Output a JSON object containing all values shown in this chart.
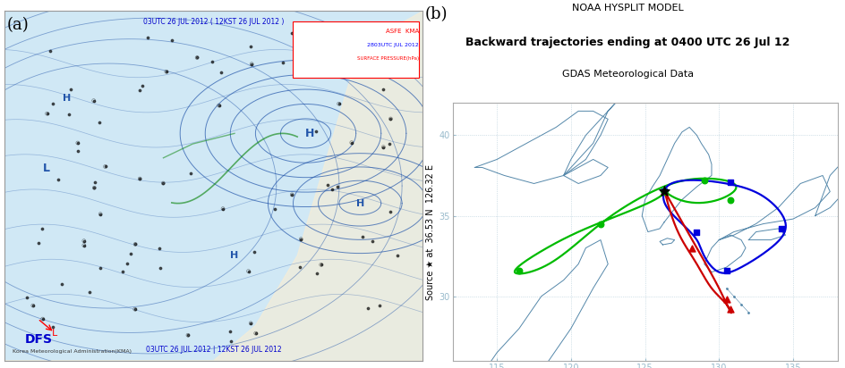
{
  "title_line1": "NOAA HYSPLIT MODEL",
  "title_line2": "Backward trajectories ending at 0400 UTC 26 Jul 12",
  "title_line3": "GDAS Meteorological Data",
  "source_label": "Source ★ at  36.53 N  126.32 E",
  "label_a": "(a)",
  "label_b": "(b)",
  "bg_color": "#ffffff",
  "map_bg": "#ffffff",
  "coast_color": "#5588aa",
  "grid_color": "#99bbcc",
  "border_color": "#999999",
  "lon_min": 112,
  "lon_max": 138,
  "lat_min": 26,
  "lat_max": 42,
  "lon_ticks": [
    115,
    120,
    125,
    130,
    135
  ],
  "lat_ticks": [
    30,
    35,
    40
  ],
  "lat_ticks_labels": [
    "30",
    "35",
    "40"
  ],
  "source_lon": 126.32,
  "source_lat": 36.53,
  "green_traj_lon": [
    126.32,
    124.5,
    121.0,
    118.0,
    116.2,
    118.5,
    122.0,
    125.5,
    128.5,
    131.0,
    130.5,
    128.5,
    126.32
  ],
  "green_traj_lat": [
    36.53,
    35.5,
    34.2,
    32.8,
    31.5,
    32.0,
    34.5,
    36.5,
    37.3,
    37.0,
    36.2,
    35.8,
    36.53
  ],
  "green_markers_lon": [
    126.32,
    122.0,
    116.5,
    129.0,
    130.8
  ],
  "green_markers_lat": [
    36.53,
    34.5,
    31.6,
    37.2,
    36.0
  ],
  "blue_traj_lon": [
    126.32,
    127.8,
    130.5,
    133.0,
    134.5,
    133.5,
    131.5,
    130.0,
    129.0,
    128.5,
    127.5,
    126.5,
    126.32
  ],
  "blue_traj_lat": [
    36.53,
    37.2,
    37.0,
    36.2,
    34.5,
    33.0,
    31.8,
    31.5,
    32.5,
    33.5,
    34.5,
    35.5,
    36.53
  ],
  "blue_markers_lon": [
    126.32,
    130.8,
    134.2,
    130.5,
    128.5
  ],
  "blue_markers_lat": [
    36.53,
    37.1,
    34.2,
    31.6,
    34.0
  ],
  "red_traj_lon": [
    126.32,
    126.8,
    127.5,
    128.5,
    129.5,
    130.5,
    130.8,
    130.0,
    128.5,
    126.32
  ],
  "red_traj_lat": [
    36.53,
    35.0,
    33.5,
    32.0,
    30.5,
    29.5,
    29.0,
    30.5,
    33.0,
    36.53
  ],
  "red_markers_lon": [
    126.32,
    128.2,
    130.5,
    130.8
  ],
  "red_markers_lat": [
    36.53,
    33.0,
    29.8,
    29.2
  ],
  "green_color": "#00bb00",
  "blue_color": "#0000dd",
  "red_color": "#cc0000",
  "title_fontsize": 8,
  "title2_fontsize": 9,
  "label_fontsize": 13,
  "tick_fontsize": 7,
  "source_fontsize": 7,
  "left_panel_color": "#f5edd8",
  "left_ocean_color": "#d0e8f5",
  "china_coast_lon": [
    113.0,
    114.5,
    116.5,
    118.5,
    120.0,
    121.5,
    122.5,
    122.0,
    121.0,
    120.5,
    119.5,
    118.0,
    116.5,
    115.0,
    113.5,
    113.0
  ],
  "china_coast_lat": [
    22.0,
    22.5,
    24.0,
    26.0,
    28.0,
    30.5,
    32.0,
    33.5,
    33.0,
    32.0,
    31.0,
    30.0,
    28.0,
    26.5,
    24.5,
    22.0
  ],
  "ne_china_lon": [
    119.5,
    120.5,
    121.5,
    122.0,
    122.5,
    123.0,
    122.0,
    121.0,
    120.0,
    119.5
  ],
  "ne_china_lat": [
    37.5,
    38.5,
    39.5,
    40.5,
    41.5,
    42.0,
    41.0,
    40.0,
    38.5,
    37.5
  ],
  "korea_lon": [
    126.3,
    126.8,
    127.5,
    128.5,
    129.5,
    129.5,
    129.3,
    128.8,
    128.5,
    128.0,
    127.5,
    127.0,
    126.5,
    126.0,
    125.5,
    125.0,
    124.8,
    125.2,
    126.0,
    126.3
  ],
  "korea_lat": [
    34.6,
    35.2,
    36.0,
    36.8,
    37.5,
    38.2,
    38.8,
    39.5,
    40.0,
    40.5,
    40.2,
    39.5,
    38.5,
    37.5,
    36.8,
    36.0,
    35.0,
    34.0,
    34.2,
    34.6
  ],
  "jeju_lon": [
    126.2,
    126.8,
    127.0,
    126.5,
    126.0,
    126.2
  ],
  "jeju_lat": [
    33.2,
    33.3,
    33.5,
    33.6,
    33.4,
    33.2
  ],
  "kyushu_lon": [
    129.5,
    130.5,
    131.5,
    131.8,
    131.5,
    130.8,
    130.0,
    129.5,
    129.0,
    129.5
  ],
  "kyushu_lat": [
    31.5,
    31.8,
    32.5,
    33.0,
    33.5,
    33.8,
    33.5,
    33.0,
    32.0,
    31.5
  ],
  "honshu_lon": [
    130.0,
    131.0,
    133.0,
    135.0,
    136.5,
    137.5,
    137.0,
    135.5,
    134.0,
    132.5,
    131.0,
    130.0
  ],
  "honshu_lat": [
    33.5,
    34.0,
    34.5,
    34.8,
    35.5,
    36.5,
    37.5,
    37.0,
    35.5,
    34.5,
    33.8,
    33.5
  ],
  "shikoku_lon": [
    132.0,
    133.5,
    134.5,
    134.0,
    132.5,
    132.0
  ],
  "shikoku_lat": [
    33.5,
    33.5,
    33.8,
    34.2,
    34.0,
    33.5
  ],
  "russia_coast_lon": [
    130.0,
    131.5,
    133.0,
    134.0,
    135.0,
    136.0,
    135.0,
    133.5,
    132.0,
    130.5,
    130.0
  ],
  "russia_coast_lat": [
    42.0,
    42.5,
    43.0,
    43.5,
    44.0,
    44.5,
    43.5,
    43.0,
    42.5,
    42.0,
    42.0
  ],
  "china_outline_lon": [
    113.5,
    115.0,
    117.0,
    119.0,
    120.5,
    121.5,
    122.5,
    122.0,
    121.0,
    119.5,
    117.5,
    115.5,
    114.0,
    113.5
  ],
  "china_outline_lat": [
    38.0,
    38.5,
    39.5,
    40.5,
    41.5,
    41.5,
    41.0,
    40.0,
    38.5,
    37.5,
    37.0,
    37.5,
    38.0,
    38.0
  ]
}
